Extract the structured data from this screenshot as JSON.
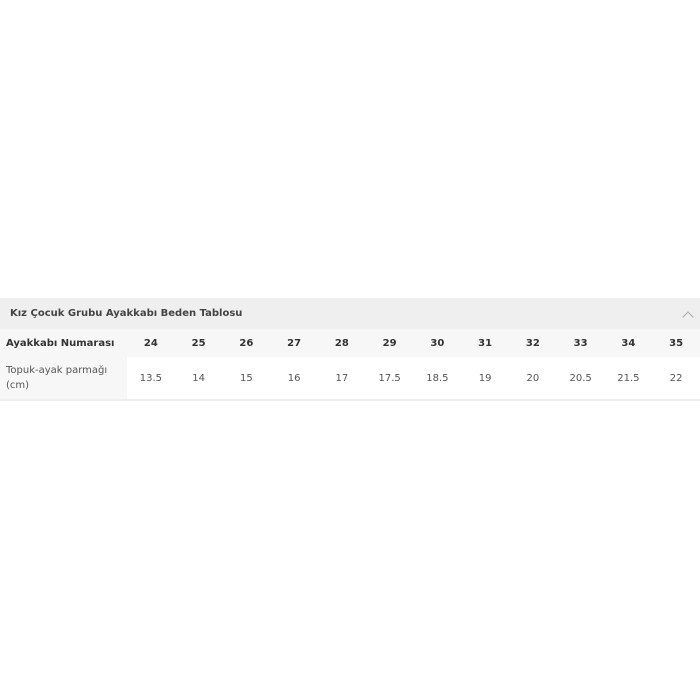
{
  "table": {
    "title": "Kız Çocuk Grubu Ayakkabı Beden Tablosu",
    "row_headers": [
      "Ayakkabı Numarası",
      "Topuk-ayak parmağı (cm)"
    ],
    "sizes": [
      "24",
      "25",
      "26",
      "27",
      "28",
      "29",
      "30",
      "31",
      "32",
      "33",
      "34",
      "35"
    ],
    "lengths": [
      "13.5",
      "14",
      "15",
      "16",
      "17",
      "17.5",
      "18.5",
      "19",
      "20",
      "20.5",
      "21.5",
      "22"
    ],
    "collapse_icon": "chevron-up-icon"
  }
}
